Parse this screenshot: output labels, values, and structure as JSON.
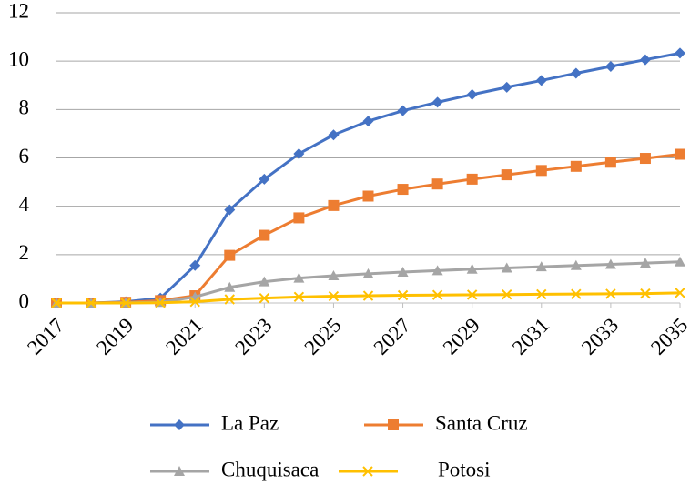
{
  "chart_data": {
    "type": "line",
    "x": [
      2017,
      2018,
      2019,
      2020,
      2021,
      2022,
      2023,
      2024,
      2025,
      2026,
      2027,
      2028,
      2029,
      2030,
      2031,
      2032,
      2033,
      2034,
      2035
    ],
    "xlim": [
      2017,
      2035
    ],
    "xticks": [
      2017,
      2019,
      2021,
      2023,
      2025,
      2027,
      2029,
      2031,
      2033,
      2035
    ],
    "ylim": [
      0,
      12
    ],
    "yticks": [
      0,
      2,
      4,
      6,
      8,
      10,
      12
    ],
    "grid": true,
    "legend": "bottom",
    "series": [
      {
        "name": "La Paz",
        "color": "#4472c4",
        "marker": "diamond",
        "values": [
          0,
          0,
          0.05,
          0.2,
          1.55,
          3.85,
          5.12,
          6.17,
          6.95,
          7.52,
          7.95,
          8.3,
          8.62,
          8.92,
          9.2,
          9.5,
          9.78,
          10.06,
          10.33
        ]
      },
      {
        "name": "Santa Cruz",
        "color": "#ed7d31",
        "marker": "square",
        "values": [
          0,
          0,
          0.03,
          0.1,
          0.3,
          1.97,
          2.8,
          3.52,
          4.03,
          4.42,
          4.7,
          4.92,
          5.12,
          5.3,
          5.48,
          5.65,
          5.82,
          5.98,
          6.15
        ]
      },
      {
        "name": "Chuquisaca",
        "color": "#a5a5a5",
        "marker": "triangle",
        "values": [
          0,
          0,
          0.01,
          0.03,
          0.25,
          0.65,
          0.88,
          1.03,
          1.13,
          1.21,
          1.28,
          1.34,
          1.4,
          1.45,
          1.5,
          1.55,
          1.6,
          1.65,
          1.7
        ]
      },
      {
        "name": "Potosi",
        "color": "#ffc000",
        "marker": "x",
        "values": [
          0,
          0,
          0,
          0.01,
          0.05,
          0.15,
          0.2,
          0.25,
          0.28,
          0.3,
          0.32,
          0.33,
          0.34,
          0.35,
          0.36,
          0.37,
          0.38,
          0.39,
          0.42
        ]
      }
    ]
  }
}
